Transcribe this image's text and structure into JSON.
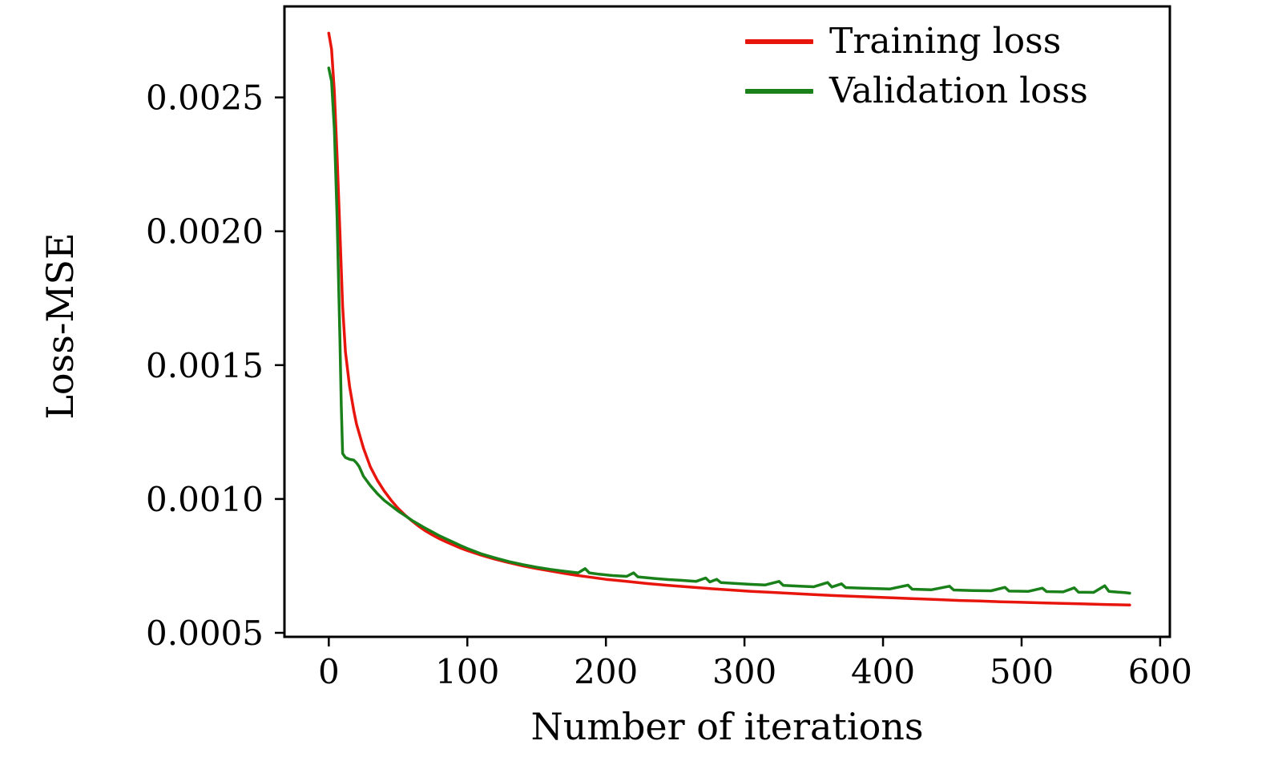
{
  "figure": {
    "background": "#ffffff",
    "axis_color": "#000000"
  },
  "chart_data": {
    "type": "line",
    "title": "",
    "xlabel": "Number of iterations",
    "ylabel": "Loss-MSE",
    "xlim": [
      -32,
      607
    ],
    "ylim": [
      0.000485,
      0.00284
    ],
    "xticks": [
      0,
      100,
      200,
      300,
      400,
      500,
      600
    ],
    "yticks": [
      0.0005,
      0.001,
      0.0015,
      0.002,
      0.0025
    ],
    "ytick_labels": [
      "0.0005",
      "0.0010",
      "0.0015",
      "0.0020",
      "0.0025"
    ],
    "grid": false,
    "legend_position": "upper right",
    "legend": [
      "Training loss",
      "Validation loss"
    ],
    "series": [
      {
        "name": "Training loss",
        "color": "#e8150d",
        "x": [
          0,
          2,
          4,
          6,
          8,
          10,
          12,
          15,
          18,
          20,
          25,
          30,
          35,
          40,
          45,
          50,
          55,
          60,
          65,
          70,
          75,
          80,
          85,
          90,
          95,
          100,
          110,
          120,
          130,
          140,
          150,
          160,
          170,
          180,
          190,
          200,
          215,
          230,
          245,
          260,
          275,
          290,
          305,
          320,
          335,
          350,
          365,
          380,
          395,
          410,
          425,
          440,
          455,
          470,
          485,
          500,
          515,
          530,
          545,
          560,
          578
        ],
        "y": [
          0.00274,
          0.00268,
          0.00252,
          0.00228,
          0.002,
          0.00172,
          0.00155,
          0.00142,
          0.00133,
          0.00128,
          0.00119,
          0.00112,
          0.00107,
          0.00103,
          0.000995,
          0.000965,
          0.00094,
          0.000918,
          0.000898,
          0.00088,
          0.000865,
          0.000851,
          0.000839,
          0.000828,
          0.000817,
          0.000807,
          0.00079,
          0.000775,
          0.000762,
          0.00075,
          0.00074,
          0.000731,
          0.000722,
          0.000714,
          0.000707,
          0.0007,
          0.000692,
          0.000684,
          0.000677,
          0.000671,
          0.000665,
          0.00066,
          0.000655,
          0.000651,
          0.000647,
          0.000643,
          0.000639,
          0.000636,
          0.000633,
          0.00063,
          0.000627,
          0.000624,
          0.000621,
          0.000619,
          0.000616,
          0.000614,
          0.000612,
          0.00061,
          0.000608,
          0.000606,
          0.000604
        ]
      },
      {
        "name": "Validation loss",
        "color": "#1a801a",
        "x": [
          0,
          2,
          4,
          6,
          8,
          9,
          10,
          12,
          15,
          18,
          20,
          22,
          25,
          30,
          35,
          40,
          45,
          50,
          55,
          60,
          65,
          70,
          75,
          80,
          85,
          90,
          95,
          100,
          110,
          120,
          130,
          140,
          150,
          160,
          170,
          180,
          185,
          188,
          195,
          205,
          215,
          220,
          223,
          235,
          245,
          255,
          265,
          272,
          275,
          280,
          283,
          295,
          305,
          315,
          325,
          328,
          340,
          350,
          360,
          363,
          370,
          373,
          385,
          395,
          405,
          418,
          421,
          435,
          448,
          451,
          465,
          478,
          488,
          491,
          505,
          515,
          518,
          530,
          538,
          541,
          552,
          560,
          563,
          570,
          575,
          578
        ],
        "y": [
          0.00261,
          0.00256,
          0.00238,
          0.00205,
          0.0016,
          0.00135,
          0.00117,
          0.001155,
          0.001148,
          0.001145,
          0.001135,
          0.00112,
          0.001085,
          0.00105,
          0.00102,
          0.000995,
          0.000975,
          0.000955,
          0.000938,
          0.00092,
          0.000905,
          0.00089,
          0.000876,
          0.000862,
          0.00085,
          0.000838,
          0.000826,
          0.000815,
          0.000795,
          0.00078,
          0.000766,
          0.000755,
          0.000745,
          0.000737,
          0.00073,
          0.000724,
          0.00074,
          0.000724,
          0.000719,
          0.000714,
          0.000711,
          0.000724,
          0.000709,
          0.000703,
          0.000699,
          0.000696,
          0.000692,
          0.000705,
          0.00069,
          0.0007,
          0.000688,
          0.000684,
          0.000681,
          0.000679,
          0.000692,
          0.000677,
          0.000674,
          0.000672,
          0.000688,
          0.000671,
          0.000683,
          0.000669,
          0.000667,
          0.000665,
          0.000664,
          0.000678,
          0.000663,
          0.000661,
          0.000674,
          0.00066,
          0.000658,
          0.000657,
          0.00067,
          0.000656,
          0.000655,
          0.000667,
          0.000654,
          0.000653,
          0.000668,
          0.000652,
          0.000651,
          0.000676,
          0.000655,
          0.000652,
          0.00065,
          0.000648
        ]
      }
    ]
  }
}
